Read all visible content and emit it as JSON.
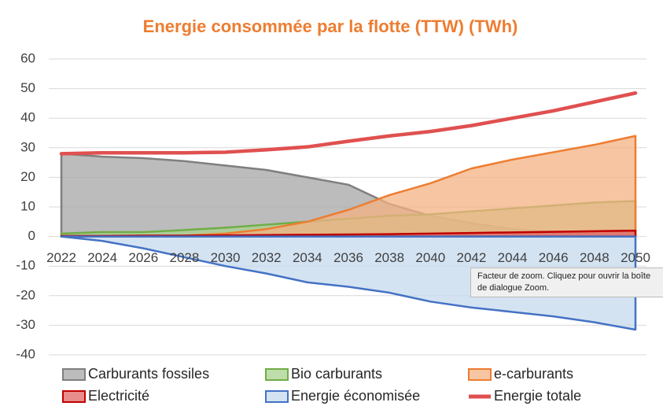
{
  "chart_data": {
    "type": "area",
    "title": "Energie consommée par la flotte (TTW) (TWh)",
    "title_color": "#ed7d31",
    "x": [
      2022,
      2024,
      2026,
      2028,
      2030,
      2032,
      2034,
      2036,
      2038,
      2040,
      2042,
      2044,
      2046,
      2048,
      2050
    ],
    "xlim": [
      2022,
      2050
    ],
    "xticks": [
      2022,
      2024,
      2026,
      2028,
      2030,
      2032,
      2034,
      2036,
      2038,
      2040,
      2042,
      2044,
      2046,
      2048,
      2050
    ],
    "ylim": [
      -40,
      60
    ],
    "yticks": [
      -40,
      -30,
      -20,
      -10,
      0,
      10,
      20,
      30,
      40,
      50,
      60
    ],
    "grid": true,
    "series": [
      {
        "name": "Carburants fossiles",
        "type": "area",
        "color": "#7f7f7f",
        "fill": "#a6a6a6",
        "values": [
          28,
          27,
          26.5,
          25.5,
          24,
          22.5,
          20,
          17.5,
          11,
          7,
          4.5,
          2.5,
          1.5,
          1,
          0.5
        ]
      },
      {
        "name": "Bio carburants",
        "type": "area",
        "color": "#70ad47",
        "fill": "#a9d18e",
        "values": [
          1,
          1.5,
          1.5,
          2.2,
          3,
          4,
          5,
          6,
          7,
          7.5,
          8.5,
          9.5,
          10.5,
          11.5,
          12
        ]
      },
      {
        "name": "e-carburants",
        "type": "area",
        "color": "#ed7d31",
        "fill": "#f4b183",
        "values": [
          0,
          0,
          0,
          0.3,
          1,
          2.5,
          5,
          9,
          14,
          18,
          23,
          26,
          28.5,
          31,
          34
        ]
      },
      {
        "name": "Electricité",
        "type": "area",
        "color": "#c00000",
        "fill": "#e06666",
        "values": [
          0.2,
          0.2,
          0.3,
          0.3,
          0.4,
          0.5,
          0.6,
          0.7,
          0.8,
          1,
          1.2,
          1.4,
          1.6,
          1.8,
          2
        ]
      },
      {
        "name": "Energie économisée",
        "type": "area",
        "color": "#4472c4",
        "fill": "#c5d9ee",
        "values": [
          0,
          -1.5,
          -4,
          -7,
          -10,
          -12.5,
          -15.5,
          -17,
          -19,
          -22,
          -24,
          -25.5,
          -27,
          -29,
          -31.5
        ]
      },
      {
        "name": "Energie totale",
        "type": "line",
        "color": "#e05050",
        "values": [
          28,
          28.3,
          28.3,
          28.3,
          28.5,
          29.3,
          30.3,
          32.2,
          34,
          35.5,
          37.5,
          40,
          42.5,
          45.5,
          48.5
        ]
      }
    ]
  },
  "tooltip": "Facteur de zoom. Cliquez pour ouvrir la boîte de dialogue Zoom."
}
